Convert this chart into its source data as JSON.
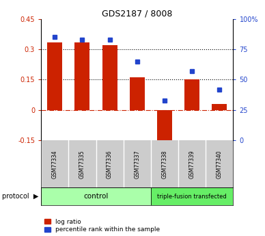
{
  "title": "GDS2187 / 8008",
  "samples": [
    "GSM77334",
    "GSM77335",
    "GSM77336",
    "GSM77337",
    "GSM77338",
    "GSM77339",
    "GSM77340"
  ],
  "log_ratio": [
    0.335,
    0.335,
    0.32,
    0.16,
    -0.195,
    0.15,
    0.03
  ],
  "percentile": [
    85,
    83,
    83,
    65,
    33,
    57,
    42
  ],
  "bar_color": "#cc2200",
  "dot_color": "#2244cc",
  "ylim_left": [
    -0.15,
    0.45
  ],
  "ylim_right": [
    0,
    100
  ],
  "yticks_left": [
    -0.15,
    0,
    0.15,
    0.3,
    0.45
  ],
  "ytick_labels_left": [
    "-0.15",
    "0",
    "0.15",
    "0.3",
    "0.45"
  ],
  "yticks_right": [
    0,
    25,
    50,
    75,
    100
  ],
  "ytick_labels_right": [
    "0",
    "25",
    "50",
    "75",
    "100%"
  ],
  "hlines": [
    0.15,
    0.3
  ],
  "control_color": "#aaffaa",
  "triple_color": "#66ee66",
  "bg_sample_label": "#cccccc",
  "legend_log_ratio": "log ratio",
  "legend_percentile": "percentile rank within the sample"
}
